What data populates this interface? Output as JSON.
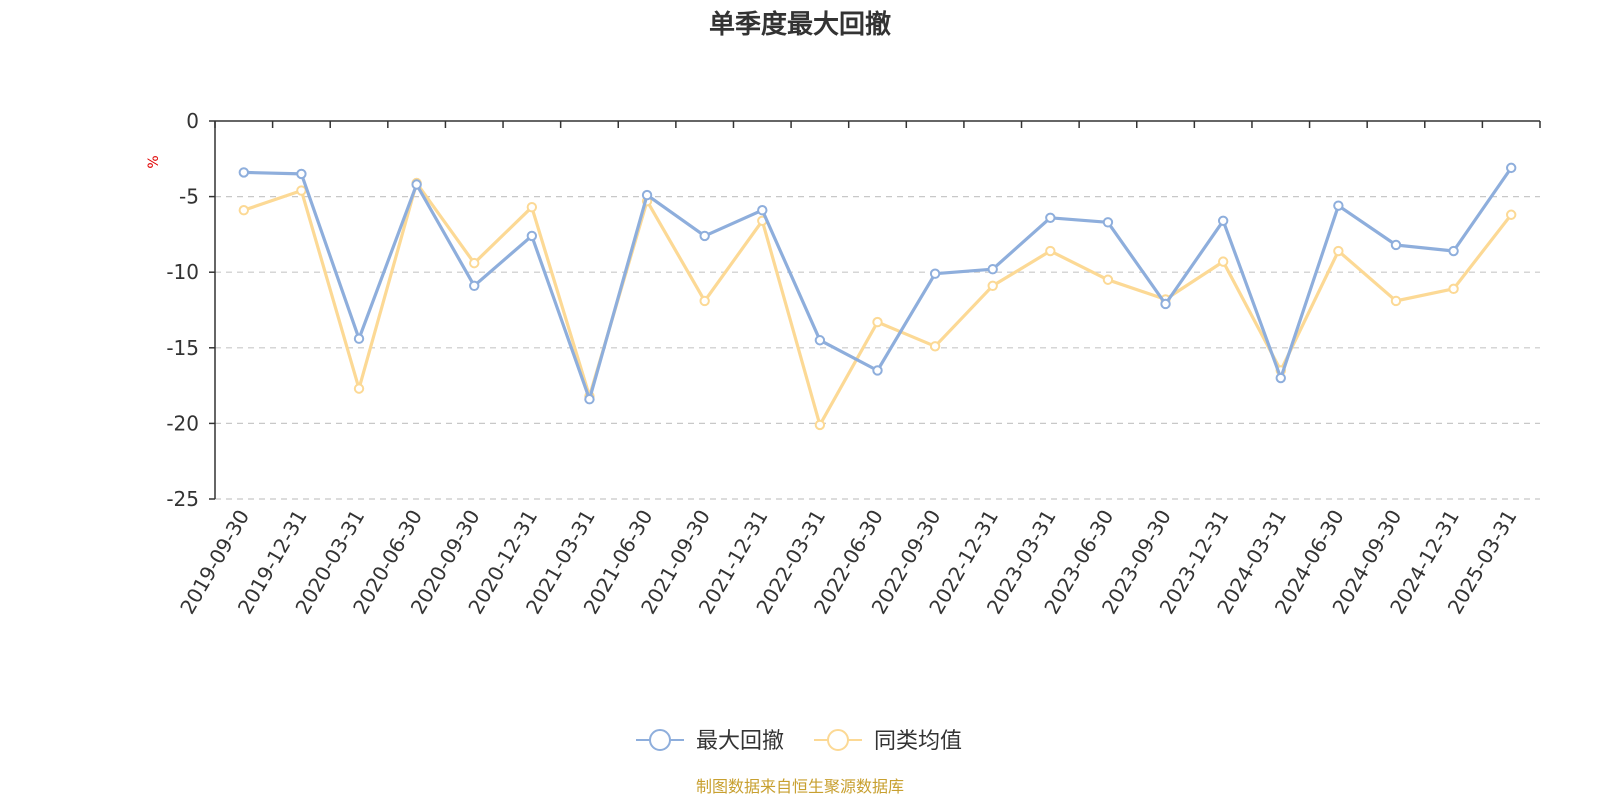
{
  "colors": {
    "series_1": "#8eaedc",
    "series_2": "#fcd995",
    "grid": "#c8c8c8",
    "axis": "#333333",
    "unit": "#e00000",
    "source": "#c8a030"
  },
  "chart_data": {
    "type": "line",
    "title": "单季度最大回撤",
    "ylabel": "%",
    "ylim": [
      -25,
      0
    ],
    "yticks": [
      0,
      -5,
      -10,
      -15,
      -20,
      -25
    ],
    "grid": true,
    "legend_position": "bottom",
    "x": [
      "2019-09-30",
      "2019-12-31",
      "2020-03-31",
      "2020-06-30",
      "2020-09-30",
      "2020-12-31",
      "2021-03-31",
      "2021-06-30",
      "2021-09-30",
      "2021-12-31",
      "2022-03-31",
      "2022-06-30",
      "2022-09-30",
      "2022-12-31",
      "2023-03-31",
      "2023-06-30",
      "2023-09-30",
      "2023-12-31",
      "2024-03-31",
      "2024-06-30",
      "2024-09-30",
      "2024-12-31",
      "2025-03-31"
    ],
    "series": [
      {
        "name": "最大回撤",
        "values": [
          -3.4,
          -3.5,
          -14.4,
          -4.2,
          -10.9,
          -7.6,
          -18.4,
          -4.9,
          -7.6,
          -5.9,
          -14.5,
          -16.5,
          -10.1,
          -9.8,
          -6.4,
          -6.7,
          -12.1,
          -6.6,
          -17.0,
          -5.6,
          -8.2,
          -8.6,
          -3.1
        ]
      },
      {
        "name": "同类均值",
        "values": [
          -5.9,
          -4.6,
          -17.7,
          -4.1,
          -9.4,
          -5.7,
          -18.2,
          -5.3,
          -11.9,
          -6.6,
          -20.1,
          -13.3,
          -14.9,
          -10.9,
          -8.6,
          -10.5,
          -11.8,
          -9.3,
          -16.5,
          -8.6,
          -11.9,
          -11.1,
          -6.2
        ]
      }
    ]
  },
  "footer": {
    "source": "制图数据来自恒生聚源数据库"
  }
}
